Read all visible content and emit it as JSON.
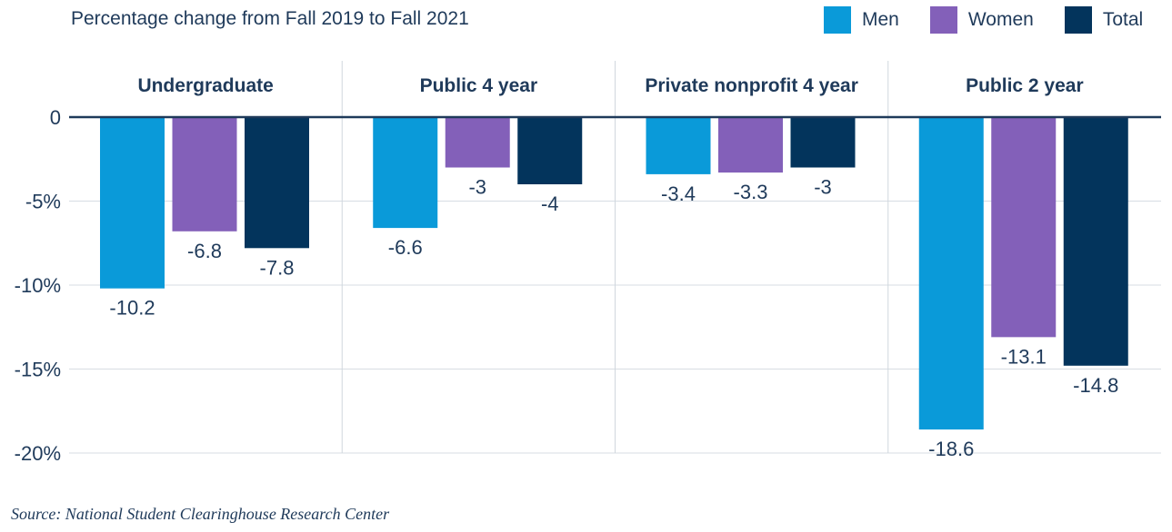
{
  "chart_data": {
    "type": "bar",
    "title": "Percentage change from Fall 2019 to Fall 2021",
    "panels": [
      {
        "label": "Undergraduate",
        "values": [
          -10.2,
          -6.8,
          -7.8
        ]
      },
      {
        "label": "Public 4 year",
        "values": [
          -6.6,
          -3,
          -4
        ]
      },
      {
        "label": "Private nonprofit 4 year",
        "values": [
          -3.4,
          -3.3,
          -3
        ]
      },
      {
        "label": "Public 2 year",
        "values": [
          -18.6,
          -13.1,
          -14.8
        ]
      }
    ],
    "series": [
      {
        "name": "Men",
        "color": "#0a9ad9"
      },
      {
        "name": "Women",
        "color": "#8360b9"
      },
      {
        "name": "Total",
        "color": "#03345c"
      }
    ],
    "value_labels": [
      [
        "-10.2",
        "-6.8",
        "-7.8"
      ],
      [
        "-6.6",
        "-3",
        "-4"
      ],
      [
        "-3.4",
        "-3.3",
        "-3"
      ],
      [
        "-18.6",
        "-13.1",
        "-14.8"
      ]
    ],
    "y_ticks": [
      0,
      -5,
      -10,
      -15,
      -20
    ],
    "y_tick_labels": [
      "0",
      "-5%",
      "-10%",
      "-15%",
      "-20%"
    ],
    "ylim": [
      -20,
      0
    ],
    "legend_position": "top-right",
    "grid": true
  },
  "source": "Source: National Student Clearinghouse Research Center"
}
